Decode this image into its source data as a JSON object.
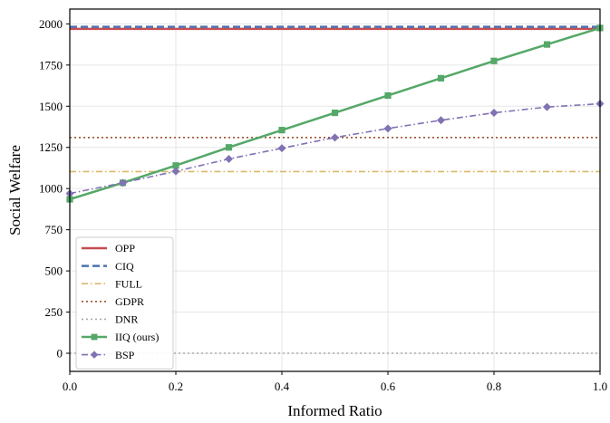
{
  "chart_data": {
    "type": "line",
    "title": "",
    "xlabel": "Informed Ratio",
    "ylabel": "Social Welfare",
    "xlim": [
      0.0,
      1.0
    ],
    "ylim": [
      -110,
      2090
    ],
    "xticks": [
      0.0,
      0.2,
      0.4,
      0.6,
      0.8,
      1.0
    ],
    "xtick_labels": [
      "0.0",
      "0.2",
      "0.4",
      "0.6",
      "0.8",
      "1.0"
    ],
    "yticks": [
      0,
      250,
      500,
      750,
      1000,
      1250,
      1500,
      1750,
      2000
    ],
    "ytick_labels": [
      "0",
      "250",
      "500",
      "750",
      "1000",
      "1250",
      "1500",
      "1750",
      "2000"
    ],
    "grid": true,
    "legend_position": "lower-left",
    "x": [
      0.0,
      0.1,
      0.2,
      0.3,
      0.4,
      0.5,
      0.6,
      0.7,
      0.8,
      0.9,
      1.0
    ],
    "series": [
      {
        "name": "OPP",
        "color": "#c44e52",
        "style": "solid",
        "marker": "none",
        "values": [
          1970,
          1970,
          1970,
          1970,
          1970,
          1970,
          1970,
          1970,
          1970,
          1970,
          1970
        ]
      },
      {
        "name": "CIQ",
        "color": "#4c72b0",
        "style": "dashed",
        "marker": "none",
        "values": [
          1982,
          1982,
          1982,
          1982,
          1982,
          1982,
          1982,
          1982,
          1982,
          1982,
          1982
        ]
      },
      {
        "name": "FULL",
        "color": "#d9b86a",
        "style": "dashdot",
        "marker": "none",
        "values": [
          1103,
          1103,
          1103,
          1103,
          1103,
          1103,
          1103,
          1103,
          1103,
          1103,
          1103
        ]
      },
      {
        "name": "GDPR",
        "color": "#a0522d",
        "style": "dotted",
        "marker": "none",
        "values": [
          1310,
          1310,
          1310,
          1310,
          1310,
          1310,
          1310,
          1310,
          1310,
          1310,
          1310
        ]
      },
      {
        "name": "DNR",
        "color": "#aaaaaa",
        "style": "dotted",
        "marker": "none",
        "values": [
          0,
          0,
          0,
          0,
          0,
          0,
          0,
          0,
          0,
          0,
          0
        ]
      },
      {
        "name": "IIQ (ours)",
        "color": "#55a868",
        "style": "solid",
        "marker": "square",
        "values": [
          935,
          1035,
          1140,
          1250,
          1355,
          1460,
          1565,
          1670,
          1775,
          1875,
          1975
        ]
      },
      {
        "name": "BSP",
        "color": "#8172b3",
        "style": "dashdot",
        "marker": "diamond",
        "values": [
          970,
          1035,
          1105,
          1180,
          1245,
          1310,
          1365,
          1415,
          1460,
          1495,
          1515
        ]
      }
    ]
  }
}
